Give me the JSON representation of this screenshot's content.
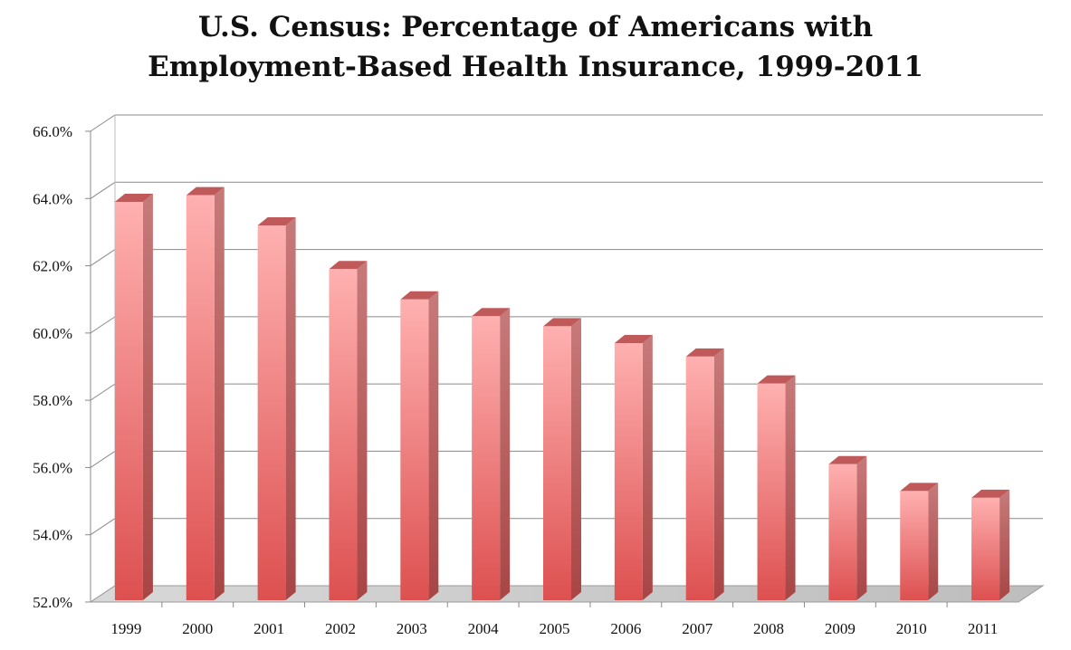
{
  "chart_data": {
    "type": "bar",
    "title_lines": [
      "U.S. Census: Percentage of Americans with",
      "Employment-Based Health Insurance, 1999-2011"
    ],
    "xlabel": "",
    "ylabel": "",
    "categories": [
      "1999",
      "2000",
      "2001",
      "2002",
      "2003",
      "2004",
      "2005",
      "2006",
      "2007",
      "2008",
      "2009",
      "2010",
      "2011"
    ],
    "values": [
      63.9,
      64.1,
      63.2,
      61.9,
      61.0,
      60.5,
      60.2,
      59.7,
      59.3,
      58.5,
      56.1,
      55.3,
      55.1
    ],
    "ylim": [
      52.0,
      66.0
    ],
    "yticks": [
      52.0,
      54.0,
      56.0,
      58.0,
      60.0,
      62.0,
      64.0,
      66.0
    ],
    "ytick_labels": [
      "52.0%",
      "54.0%",
      "56.0%",
      "58.0%",
      "60.0%",
      "62.0%",
      "64.0%",
      "66.0%"
    ],
    "grid": true,
    "legend": "none",
    "style": "3d-column",
    "colors": {
      "bar_top": "#ffb0b0",
      "bar_bottom": "#dd5050",
      "bar_side": "#a84545",
      "bar_cap": "#c05a5a",
      "grid": "#8a8a8a",
      "floor": "#c8c8c8"
    }
  }
}
